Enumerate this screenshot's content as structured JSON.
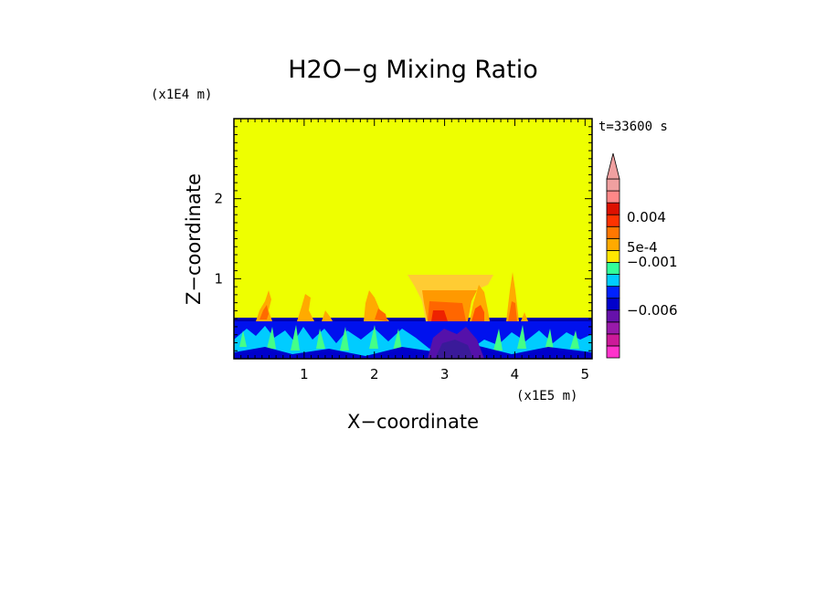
{
  "chart_data": {
    "type": "heatmap",
    "title": "H2O−g Mixing Ratio",
    "xlabel": "X−coordinate",
    "ylabel": "Z−coordinate",
    "x_scale_note": "(x1E5 m)",
    "y_scale_note": "(x1E4 m)",
    "time_label": "t=33600 s",
    "x_ticks": [
      "1",
      "2",
      "3",
      "4",
      "5"
    ],
    "y_ticks": [
      "1",
      "2"
    ],
    "xlim": [
      0,
      5.1
    ],
    "ylim": [
      0,
      3
    ],
    "colorbar": {
      "levels": [
        "#ff33cc",
        "#cc1a99",
        "#991aaa",
        "#6611aa",
        "#0000cc",
        "#0022ff",
        "#00ccff",
        "#33ff99",
        "#ffe600",
        "#ffaa00",
        "#ff7700",
        "#ff3300",
        "#dd1100",
        "#ff8888",
        "#f0a0a0"
      ],
      "extend_top": true,
      "labels": [
        "0.004",
        "5e-4",
        "−0.001",
        "−0.006"
      ]
    },
    "background_value_color": "#eeff00"
  }
}
